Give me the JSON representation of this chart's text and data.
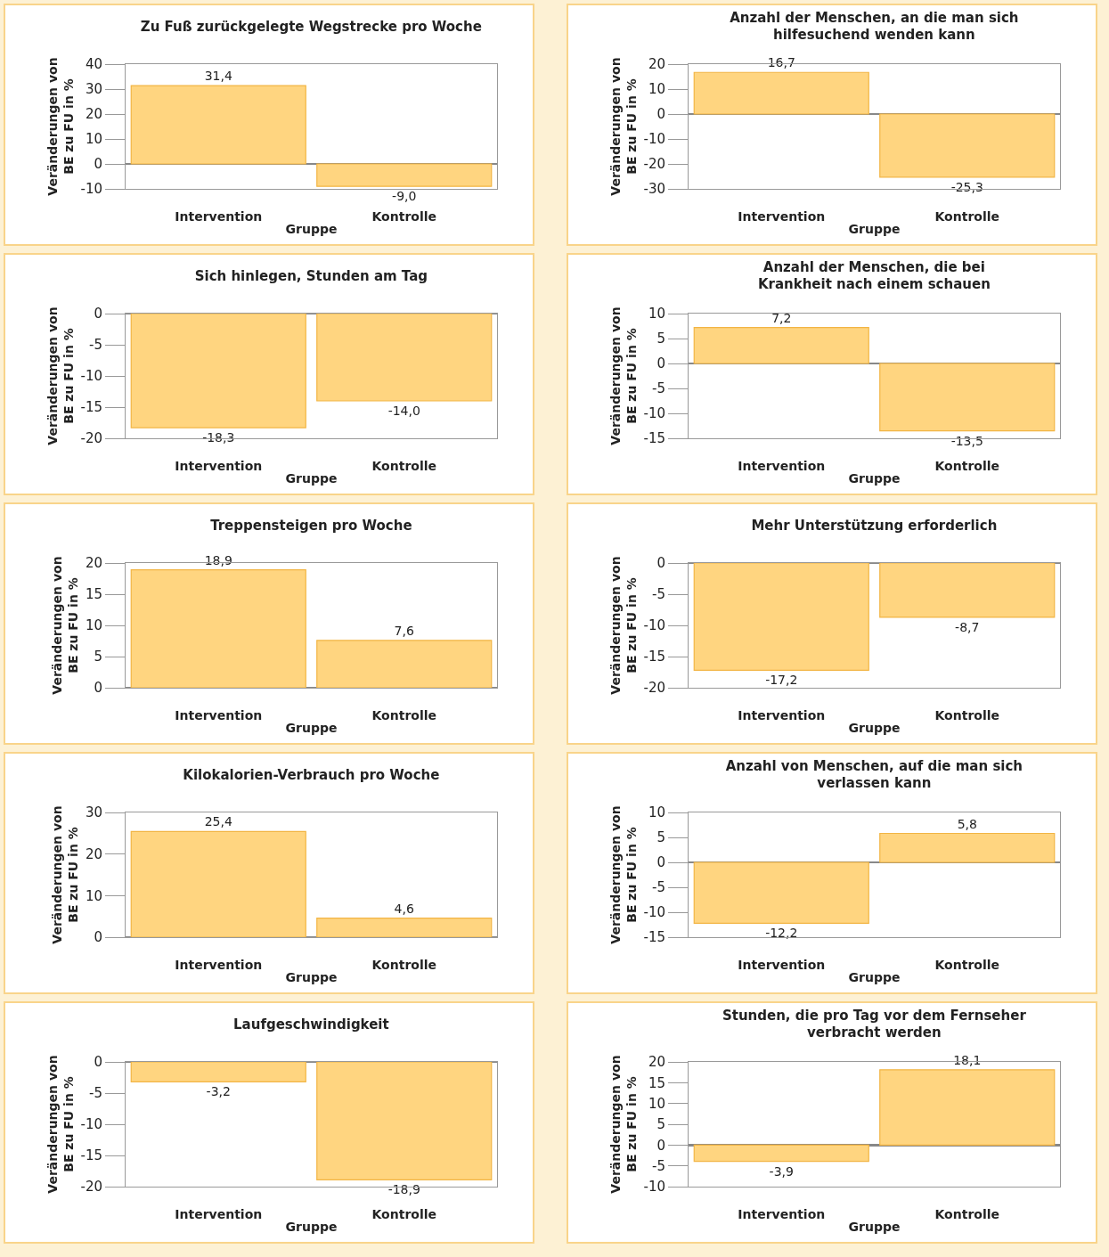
{
  "chart_data": [
    {
      "type": "bar",
      "title": "Zu Fuß zurückgelegte Wegstrecke pro Woche",
      "xlabel": "Gruppe",
      "ylabel": "Veränderungen von\nBE zu FU in %",
      "categories": [
        "Intervention",
        "Kontrolle"
      ],
      "values": [
        31.4,
        -9.0
      ],
      "value_labels": [
        "31,4",
        "-9,0"
      ],
      "color": "#ffd580",
      "ylim": [
        -10,
        40
      ],
      "yticks": [
        -10,
        0,
        10,
        20,
        30,
        40
      ]
    },
    {
      "type": "bar",
      "title": "Anzahl der Menschen, an die man sich\nhilfesuchend wenden kann",
      "xlabel": "Gruppe",
      "ylabel": "Veränderungen von\nBE zu FU in %",
      "categories": [
        "Intervention",
        "Kontrolle"
      ],
      "values": [
        16.7,
        -25.3
      ],
      "value_labels": [
        "16,7",
        "-25,3"
      ],
      "color": "#ffd580",
      "ylim": [
        -30,
        20
      ],
      "yticks": [
        -30,
        -20,
        -10,
        0,
        10,
        20
      ]
    },
    {
      "type": "bar",
      "title": "Sich hinlegen, Stunden am Tag",
      "xlabel": "Gruppe",
      "ylabel": "Veränderungen von\nBE zu FU in %",
      "categories": [
        "Intervention",
        "Kontrolle"
      ],
      "values": [
        -18.3,
        -14.0
      ],
      "value_labels": [
        "-18,3",
        "-14,0"
      ],
      "color": "#ffd580",
      "ylim": [
        -20,
        0
      ],
      "yticks": [
        -20,
        -15,
        -10,
        -5,
        0
      ]
    },
    {
      "type": "bar",
      "title": "Anzahl der Menschen, die bei\nKrankheit nach einem schauen",
      "xlabel": "Gruppe",
      "ylabel": "Veränderungen von\nBE zu FU in %",
      "categories": [
        "Intervention",
        "Kontrolle"
      ],
      "values": [
        7.2,
        -13.5
      ],
      "value_labels": [
        "7,2",
        "-13,5"
      ],
      "color": "#ffd580",
      "ylim": [
        -15,
        10
      ],
      "yticks": [
        -15,
        -10,
        -5,
        0,
        5,
        10
      ]
    },
    {
      "type": "bar",
      "title": "Treppensteigen pro Woche",
      "xlabel": "Gruppe",
      "ylabel": "Veränderungen von\nBE zu FU in %",
      "categories": [
        "Intervention",
        "Kontrolle"
      ],
      "values": [
        18.9,
        7.6
      ],
      "value_labels": [
        "18,9",
        "7,6"
      ],
      "color": "#ffd580",
      "ylim": [
        0,
        20
      ],
      "yticks": [
        0,
        5,
        10,
        15,
        20
      ]
    },
    {
      "type": "bar",
      "title": "Mehr Unterstützung erforderlich",
      "xlabel": "Gruppe",
      "ylabel": "Veränderungen von\nBE zu FU in %",
      "categories": [
        "Intervention",
        "Kontrolle"
      ],
      "values": [
        -17.2,
        -8.7
      ],
      "value_labels": [
        "-17,2",
        "-8,7"
      ],
      "color": "#ffd580",
      "ylim": [
        -20,
        0
      ],
      "yticks": [
        -20,
        -15,
        -10,
        -5,
        0
      ]
    },
    {
      "type": "bar",
      "title": "Kilokalorien-Verbrauch pro Woche",
      "xlabel": "Gruppe",
      "ylabel": "Veränderungen von\nBE zu FU in %",
      "categories": [
        "Intervention",
        "Kontrolle"
      ],
      "values": [
        25.4,
        4.6
      ],
      "value_labels": [
        "25,4",
        "4,6"
      ],
      "color": "#ffd580",
      "ylim": [
        0,
        30
      ],
      "yticks": [
        0,
        10,
        20,
        30
      ]
    },
    {
      "type": "bar",
      "title": "Anzahl von Menschen, auf die man sich\nverlassen kann",
      "xlabel": "Gruppe",
      "ylabel": "Veränderungen von\nBE zu FU in %",
      "categories": [
        "Intervention",
        "Kontrolle"
      ],
      "values": [
        -12.2,
        5.8
      ],
      "value_labels": [
        "-12,2",
        "5,8"
      ],
      "color": "#ffd580",
      "ylim": [
        -15,
        10
      ],
      "yticks": [
        -15,
        -10,
        -5,
        0,
        5,
        10
      ]
    },
    {
      "type": "bar",
      "title": "Laufgeschwindigkeit",
      "xlabel": "Gruppe",
      "ylabel": "Veränderungen von\nBE zu FU in %",
      "categories": [
        "Intervention",
        "Kontrolle"
      ],
      "values": [
        -3.2,
        -18.9
      ],
      "value_labels": [
        "-3,2",
        "-18,9"
      ],
      "color": "#ffd580",
      "ylim": [
        -20,
        0
      ],
      "yticks": [
        -20,
        -15,
        -10,
        -5,
        0
      ]
    },
    {
      "type": "bar",
      "title": "Stunden, die pro Tag vor dem Fernseher\nverbracht werden",
      "xlabel": "Gruppe",
      "ylabel": "Veränderungen von\nBE zu FU in %",
      "categories": [
        "Intervention",
        "Kontrolle"
      ],
      "values": [
        -3.9,
        18.1
      ],
      "value_labels": [
        "-3,9",
        "18,1"
      ],
      "color": "#ffd580",
      "ylim": [
        -10,
        20
      ],
      "yticks": [
        -10,
        -5,
        0,
        5,
        10,
        15,
        20
      ]
    }
  ]
}
